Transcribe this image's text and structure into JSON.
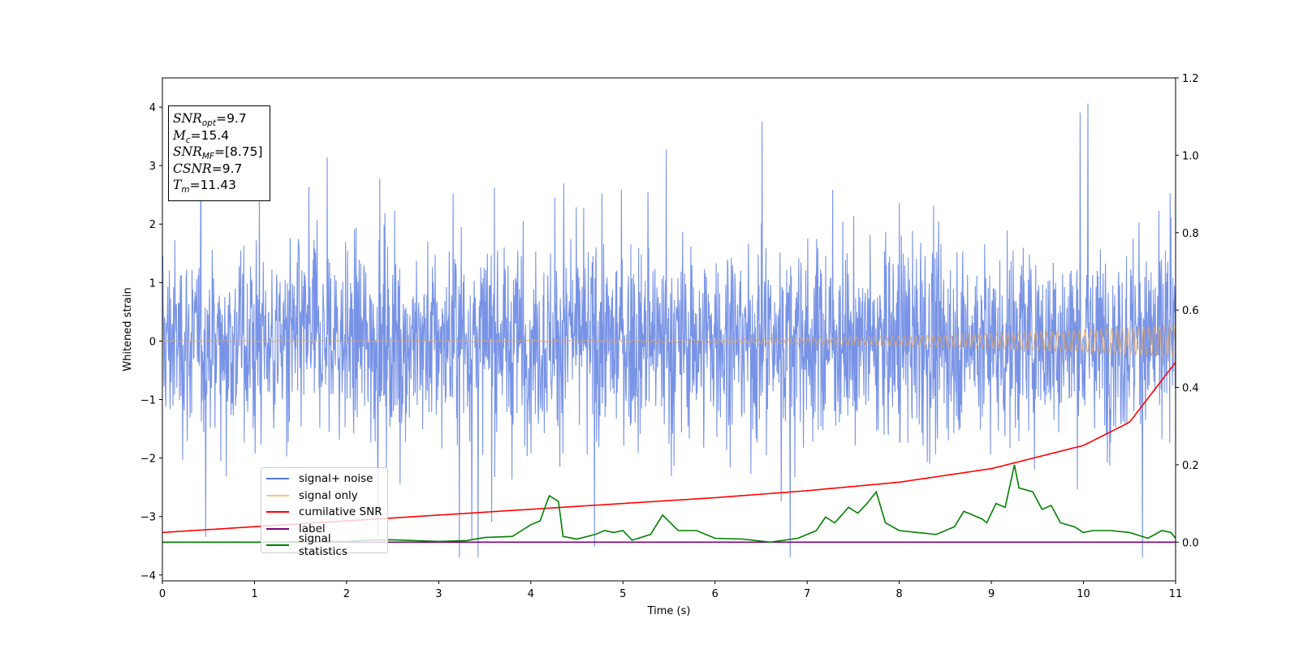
{
  "chart_data": {
    "type": "line",
    "xlabel": "Time (s)",
    "ylabel": "Whitened strain",
    "xlim": [
      0,
      11
    ],
    "ylim_left": [
      -4.1,
      4.5
    ],
    "ylim_right": [
      -0.1,
      1.2
    ],
    "x_ticks": [
      "0",
      "1",
      "2",
      "3",
      "4",
      "5",
      "6",
      "7",
      "8",
      "9",
      "10",
      "11"
    ],
    "y_ticks_left": [
      "4",
      "3",
      "2",
      "1",
      "0",
      "−1",
      "−2",
      "−3",
      "−4"
    ],
    "y_ticks_right": [
      "1.2",
      "1.0",
      "0.8",
      "0.6",
      "0.4",
      "0.2",
      "0.0"
    ],
    "annotation": {
      "snr_opt": "=9.7",
      "mc": "=15.4",
      "snr_mf": "=[8.75]",
      "csnr": "=9.7",
      "tm": "=11.43"
    },
    "legend": {
      "placement": "lower-left",
      "entries": [
        "signal+ noise",
        "signal only",
        "cumilative SNR",
        "label",
        "signal statistics"
      ]
    },
    "series": [
      {
        "name": "signal+ noise",
        "axis": "left",
        "color": "#7893e6",
        "description_band": {
          "min_approx": -3.7,
          "max_approx": 4.15,
          "typical_abs": 1.3
        }
      },
      {
        "name": "signal only",
        "axis": "left",
        "color": "#f0c070",
        "amplitude_start": 0.01,
        "amplitude_end": 0.27
      },
      {
        "name": "cumilative SNR",
        "axis": "right",
        "color": "#ff0000",
        "x": [
          0,
          1,
          2,
          3,
          4,
          5,
          6,
          7,
          8,
          9,
          10,
          10.5,
          11
        ],
        "y": [
          0.025,
          0.04,
          0.055,
          0.07,
          0.085,
          0.1,
          0.115,
          0.133,
          0.155,
          0.19,
          0.25,
          0.31,
          0.465
        ]
      },
      {
        "name": "label",
        "axis": "right",
        "color": "#800080",
        "x": [
          0,
          11
        ],
        "y": [
          0.0,
          0.0
        ]
      },
      {
        "name": "signal statistics",
        "axis": "right",
        "color": "#008000",
        "x": [
          0,
          0.5,
          1,
          1.5,
          2,
          2.3,
          2.5,
          3,
          3.3,
          3.5,
          3.8,
          4,
          4.1,
          4.2,
          4.3,
          4.35,
          4.5,
          4.7,
          4.8,
          4.9,
          5,
          5.1,
          5.3,
          5.43,
          5.6,
          5.8,
          6,
          6.3,
          6.6,
          6.9,
          7,
          7.1,
          7.2,
          7.3,
          7.45,
          7.55,
          7.65,
          7.75,
          7.85,
          8,
          8.2,
          8.4,
          8.6,
          8.7,
          8.9,
          8.95,
          9.05,
          9.15,
          9.25,
          9.3,
          9.45,
          9.55,
          9.65,
          9.75,
          9.9,
          10,
          10.1,
          10.3,
          10.5,
          10.7,
          10.85,
          10.95,
          11
        ],
        "y": [
          0.0,
          0.0,
          0.0,
          0.001,
          0.002,
          0.006,
          0.006,
          0.002,
          0.004,
          0.012,
          0.015,
          0.045,
          0.055,
          0.12,
          0.105,
          0.015,
          0.008,
          0.02,
          0.03,
          0.025,
          0.03,
          0.005,
          0.02,
          0.07,
          0.03,
          0.03,
          0.01,
          0.008,
          0.0,
          0.01,
          0.02,
          0.03,
          0.065,
          0.05,
          0.09,
          0.075,
          0.1,
          0.13,
          0.05,
          0.03,
          0.025,
          0.02,
          0.04,
          0.08,
          0.06,
          0.05,
          0.1,
          0.09,
          0.2,
          0.14,
          0.13,
          0.085,
          0.095,
          0.05,
          0.04,
          0.025,
          0.03,
          0.03,
          0.025,
          0.01,
          0.03,
          0.025,
          0.01
        ]
      }
    ]
  }
}
